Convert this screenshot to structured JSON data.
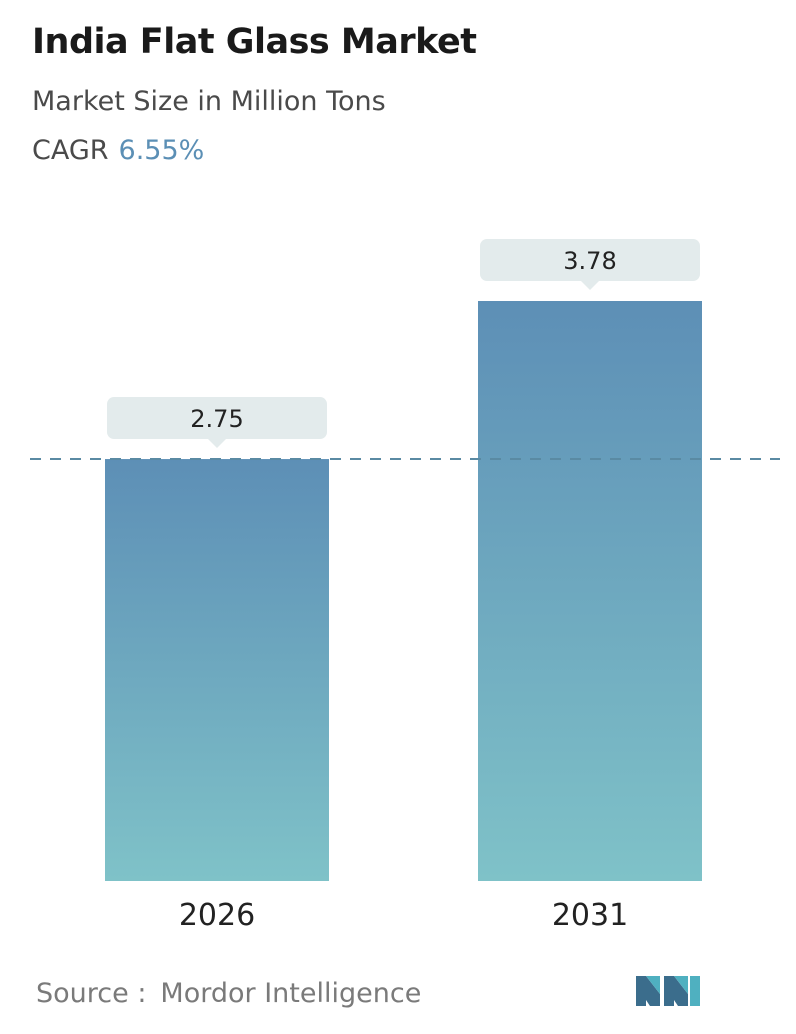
{
  "header": {
    "title": "India Flat Glass Market",
    "subtitle": "Market Size in Million Tons",
    "cagr_label": "CAGR",
    "cagr_value": "6.55%"
  },
  "chart_data": {
    "type": "bar",
    "categories": [
      "2026",
      "2031"
    ],
    "values": [
      2.75,
      3.78
    ],
    "value_labels": [
      "2.75",
      "3.78"
    ],
    "title": "India Flat Glass Market",
    "ylabel": "Market Size in Million Tons",
    "reference_line": 2.75,
    "colors": {
      "bar_top": "#5d8fb6",
      "bar_bottom": "#7fc2c8",
      "label_bg": "#e3ebec",
      "dash": "#5a8aa3"
    }
  },
  "footer": {
    "source_label": "Source :",
    "source_value": "Mordor Intelligence",
    "logo_icon": "mordor-intelligence-logo-icon"
  }
}
